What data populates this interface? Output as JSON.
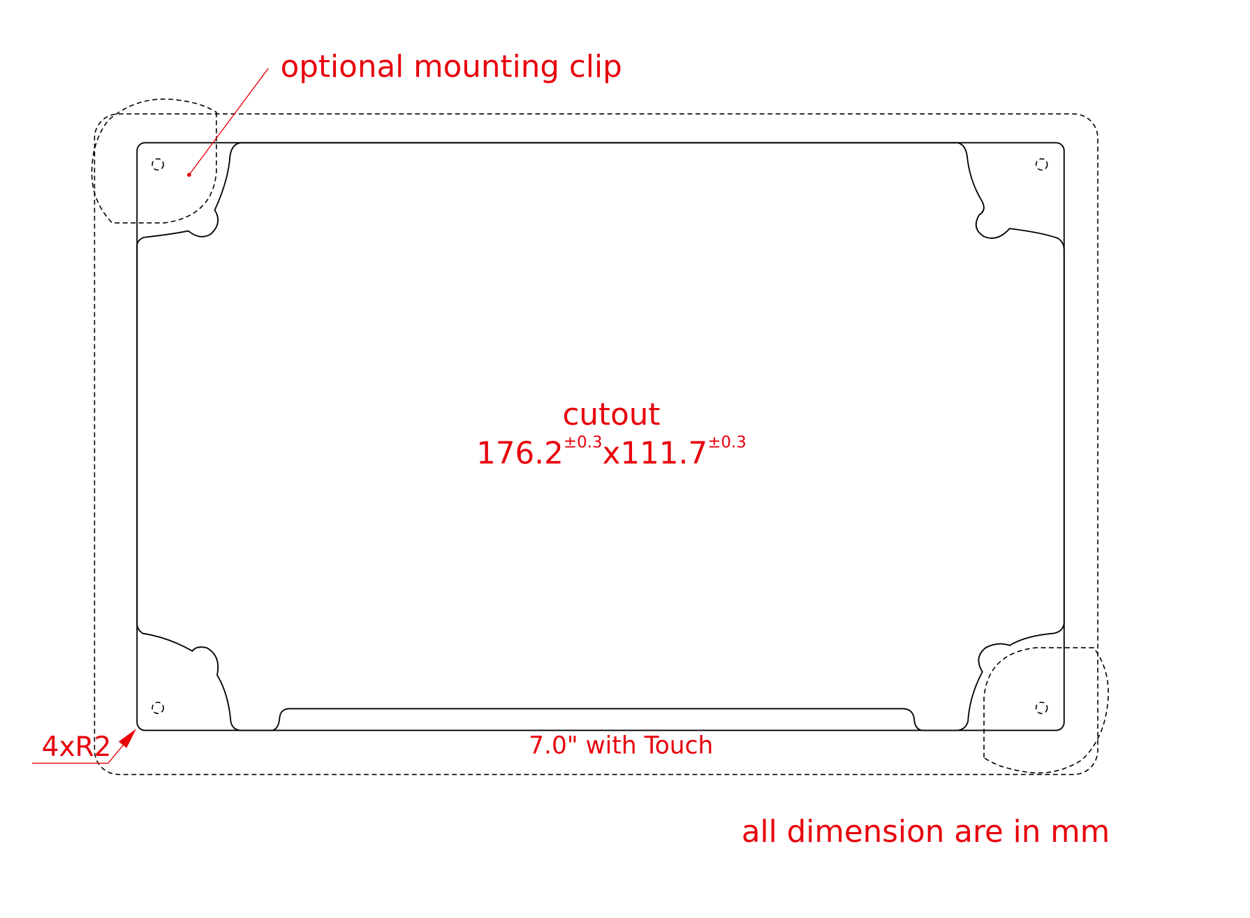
{
  "labels": {
    "mounting_clip": "optional mounting clip",
    "cutout": "cutout",
    "width": "176.2",
    "width_tolerance": "±0.3",
    "height": "x111.7",
    "height_tolerance": "±0.3",
    "model": "7.0\" with Touch",
    "corner_radius": "4xR2",
    "units_note": "all dimension are in mm"
  }
}
